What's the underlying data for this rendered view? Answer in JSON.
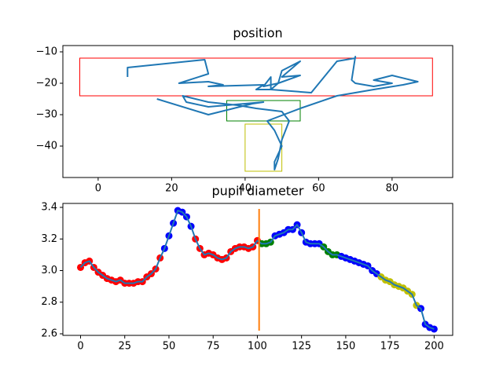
{
  "chart_data": [
    {
      "type": "line",
      "title": "position",
      "x": [
        8,
        8,
        29,
        30,
        22,
        30,
        34,
        30,
        45,
        43,
        47,
        49,
        50,
        55,
        50,
        55,
        49,
        45,
        47,
        47,
        58,
        65,
        70,
        70,
        69,
        70,
        75,
        80,
        75,
        80,
        87,
        83,
        75,
        70,
        65,
        55,
        46,
        48,
        50,
        48,
        48,
        49,
        50,
        52,
        50,
        43,
        38,
        30,
        23,
        24,
        30,
        35,
        45,
        42,
        30,
        16
      ],
      "series": [
        {
          "color": "#1f77b4",
          "values": [
            -18,
            -15,
            -12.5,
            -17,
            -20,
            -19.5,
            -20.5,
            -21,
            -20.5,
            -22,
            -22,
            -20,
            -16,
            -13,
            -18,
            -17.5,
            -20,
            -21,
            -18,
            -22,
            -23,
            -13,
            -12,
            -11.5,
            -19,
            -20,
            -21,
            -20,
            -19,
            -17.5,
            -19.5,
            -20.5,
            -22,
            -23,
            -24,
            -28,
            -32,
            -35,
            -40,
            -45,
            -47.5,
            -44,
            -38,
            -32,
            -29,
            -28,
            -27,
            -26,
            -24,
            -26,
            -27.5,
            -27,
            -26,
            -26.5,
            -30,
            -25
          ]
        }
      ],
      "rectangles": [
        {
          "x0": -5,
          "x1": 91,
          "y0": -24,
          "y1": -12,
          "color": "#ff0000"
        },
        {
          "x0": 35,
          "x1": 55,
          "y0": -32,
          "y1": -25.5,
          "color": "#008000"
        },
        {
          "x0": 40,
          "x1": 50,
          "y0": -48,
          "y1": -33,
          "color": "#bfbf00"
        }
      ],
      "xlim": [
        -9.6,
        96.5
      ],
      "ylim": [
        -50,
        -8
      ],
      "xticks": [
        0,
        20,
        40,
        60,
        80
      ],
      "yticks": [
        {
          "value": -10,
          "label": "−10"
        },
        {
          "value": -20,
          "label": "−20"
        },
        {
          "value": -30,
          "label": "−30"
        },
        {
          "value": -40,
          "label": "−40"
        }
      ]
    },
    {
      "type": "line",
      "title": "pupil diameter",
      "x": [
        0,
        2.5,
        5,
        7.5,
        10,
        12.5,
        15,
        17.5,
        20,
        22.5,
        25,
        27.5,
        30,
        32.5,
        35,
        37.5,
        40,
        42.5,
        45,
        47.5,
        50,
        52.5,
        55,
        57.5,
        60,
        62.5,
        65,
        67.5,
        70,
        72.5,
        75,
        77.5,
        80,
        82.5,
        85,
        87.5,
        90,
        92.5,
        95,
        97.5,
        100,
        102.5,
        105,
        107.5,
        110,
        112.5,
        115,
        117.5,
        120,
        122.5,
        125,
        127.5,
        130,
        132.5,
        135,
        137.5,
        140,
        142.5,
        145,
        147.5,
        150,
        152.5,
        155,
        157.5,
        160,
        162.5,
        165,
        167.5,
        170,
        172.5,
        175,
        177.5,
        180,
        182.5,
        185,
        187.5,
        190,
        192.5,
        195,
        197.5,
        200
      ],
      "series": [
        {
          "color": "#1f77b4",
          "values": [
            3.02,
            3.05,
            3.06,
            3.02,
            2.99,
            2.97,
            2.95,
            2.94,
            2.93,
            2.94,
            2.92,
            2.92,
            2.92,
            2.93,
            2.93,
            2.96,
            2.98,
            3.01,
            3.08,
            3.14,
            3.22,
            3.3,
            3.38,
            3.37,
            3.34,
            3.28,
            3.2,
            3.14,
            3.1,
            3.11,
            3.1,
            3.08,
            3.07,
            3.08,
            3.12,
            3.14,
            3.15,
            3.15,
            3.14,
            3.15,
            3.19,
            3.17,
            3.17,
            3.18,
            3.22,
            3.23,
            3.24,
            3.26,
            3.26,
            3.29,
            3.24,
            3.18,
            3.17,
            3.17,
            3.17,
            3.15,
            3.12,
            3.1,
            3.1,
            3.09,
            3.08,
            3.07,
            3.06,
            3.05,
            3.04,
            3.03,
            3.0,
            2.98,
            2.96,
            2.94,
            2.93,
            2.91,
            2.9,
            2.89,
            2.87,
            2.85,
            2.78,
            2.76,
            2.66,
            2.64,
            2.63
          ],
          "marker_colors": [
            "#ff0000",
            "#ff0000",
            "#ff0000",
            "#ff0000",
            "#ff0000",
            "#ff0000",
            "#ff0000",
            "#ff0000",
            "#ff0000",
            "#ff0000",
            "#ff0000",
            "#ff0000",
            "#ff0000",
            "#ff0000",
            "#ff0000",
            "#ff0000",
            "#ff0000",
            "#ff0000",
            "#ff0000",
            "#0000ff",
            "#0000ff",
            "#0000ff",
            "#0000ff",
            "#0000ff",
            "#0000ff",
            "#0000ff",
            "#ff0000",
            "#ff0000",
            "#ff0000",
            "#ff0000",
            "#ff0000",
            "#ff0000",
            "#ff0000",
            "#ff0000",
            "#ff0000",
            "#ff0000",
            "#ff0000",
            "#ff0000",
            "#ff0000",
            "#ff0000",
            "#ff0000",
            "#008000",
            "#008000",
            "#008000",
            "#0000ff",
            "#0000ff",
            "#0000ff",
            "#0000ff",
            "#0000ff",
            "#0000ff",
            "#0000ff",
            "#0000ff",
            "#0000ff",
            "#0000ff",
            "#0000ff",
            "#008000",
            "#008000",
            "#008000",
            "#008000",
            "#0000ff",
            "#0000ff",
            "#0000ff",
            "#0000ff",
            "#0000ff",
            "#0000ff",
            "#0000ff",
            "#0000ff",
            "#0000ff",
            "#bfbf00",
            "#bfbf00",
            "#bfbf00",
            "#bfbf00",
            "#bfbf00",
            "#bfbf00",
            "#bfbf00",
            "#bfbf00",
            "#bfbf00",
            "#0000ff",
            "#0000ff",
            "#0000ff",
            "#0000ff"
          ]
        }
      ],
      "vline": {
        "x": 101,
        "ymin": 2.62,
        "ymax": 3.39,
        "color": "#ff7f0e"
      },
      "xlim": [
        -10,
        210.5
      ],
      "ylim": [
        2.59,
        3.425
      ],
      "xticks": [
        0,
        25,
        50,
        75,
        100,
        125,
        150,
        175,
        200
      ],
      "yticks": [
        2.6,
        2.8,
        {
          "value": 3,
          "label": "3.0"
        },
        3.2,
        3.4
      ]
    }
  ]
}
